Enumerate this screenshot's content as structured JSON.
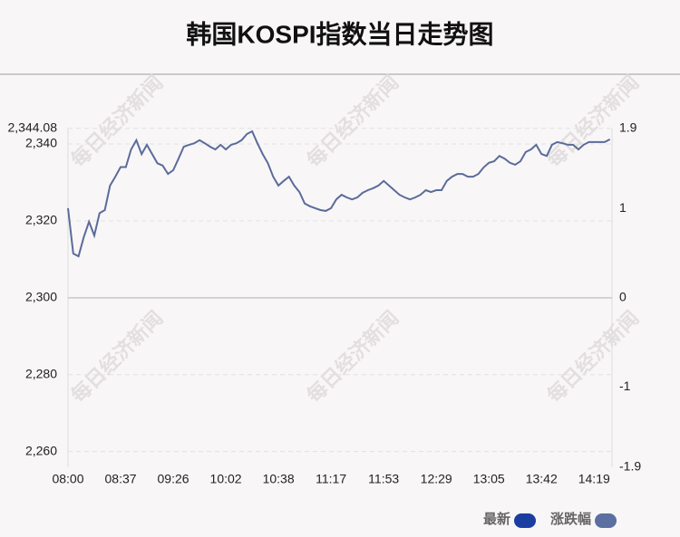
{
  "chart_data": {
    "type": "line",
    "title": "韩国KOSPI指数当日走势图",
    "watermark": "每日经济新闻",
    "categories": [
      "08:00",
      null,
      null,
      null,
      null,
      null,
      null,
      null,
      null,
      null,
      "08:37",
      null,
      null,
      null,
      null,
      null,
      null,
      null,
      null,
      null,
      "09:26",
      null,
      null,
      null,
      null,
      null,
      null,
      null,
      null,
      null,
      "10:02",
      null,
      null,
      null,
      null,
      null,
      null,
      null,
      null,
      null,
      "10:38",
      null,
      null,
      null,
      null,
      null,
      null,
      null,
      null,
      null,
      "11:17",
      null,
      null,
      null,
      null,
      null,
      null,
      null,
      null,
      null,
      "11:53",
      null,
      null,
      null,
      null,
      null,
      null,
      null,
      null,
      null,
      "12:29",
      null,
      null,
      null,
      null,
      null,
      null,
      null,
      null,
      null,
      "13:05",
      null,
      null,
      null,
      null,
      null,
      null,
      null,
      null,
      null,
      "13:42",
      null,
      null,
      null,
      null,
      null,
      null,
      null,
      null,
      null,
      "14:19",
      null,
      null,
      null
    ],
    "series": [
      {
        "name": "最新",
        "color": "#5b6b9a",
        "values": [
          2323.3,
          2311.5,
          2310.8,
          2315.8,
          2319.8,
          2316.2,
          2322,
          2322.8,
          2329.2,
          2331.5,
          2334,
          2334,
          2338.6,
          2341,
          2337.4,
          2339.8,
          2337.4,
          2335,
          2334.4,
          2332.2,
          2333.2,
          2336.2,
          2339.3,
          2339.8,
          2340.2,
          2341,
          2340.2,
          2339.3,
          2338.6,
          2339.8,
          2338.6,
          2339.8,
          2340.2,
          2341,
          2342.6,
          2343.3,
          2340.2,
          2337.4,
          2335,
          2331.5,
          2329.2,
          2330.4,
          2331.5,
          2329.2,
          2327.5,
          2324.5,
          2323.8,
          2323.3,
          2322.8,
          2322.6,
          2323.3,
          2325.6,
          2326.8,
          2326.1,
          2325.6,
          2326.1,
          2327.3,
          2328,
          2328.5,
          2329.2,
          2330.4,
          2329.2,
          2328,
          2326.8,
          2326.1,
          2325.6,
          2326.1,
          2326.8,
          2328,
          2327.5,
          2328,
          2328,
          2330.4,
          2331.5,
          2332.2,
          2332.2,
          2331.5,
          2331.5,
          2332.2,
          2333.9,
          2335.1,
          2335.5,
          2336.9,
          2336.2,
          2335.1,
          2334.6,
          2335.5,
          2337.9,
          2338.6,
          2339.8,
          2337.4,
          2336.9,
          2339.8,
          2340.5,
          2340.2,
          2339.8,
          2339.8,
          2338.6,
          2339.8,
          2340.5,
          2340.5,
          2340.5,
          2340.5,
          2341.2
        ]
      }
    ],
    "legend": [
      {
        "name": "最新",
        "color": "#1c3da0"
      },
      {
        "name": "涨跌幅",
        "color": "#5b6fa0"
      }
    ],
    "ylim": [
      2255.92,
      2344.08
    ],
    "yticks": [
      {
        "value": 2344.08,
        "label": "2,344.08"
      },
      {
        "value": 2340,
        "label": "2,340"
      },
      {
        "value": 2320,
        "label": "2,320"
      },
      {
        "value": 2300,
        "label": "2,300"
      },
      {
        "value": 2280,
        "label": "2,280"
      },
      {
        "value": 2260,
        "label": "2,260"
      }
    ],
    "y2lim": [
      -1.9,
      1.9
    ],
    "y2ticks": [
      1.9,
      1,
      0,
      -1,
      -1.9
    ],
    "grid": true
  }
}
